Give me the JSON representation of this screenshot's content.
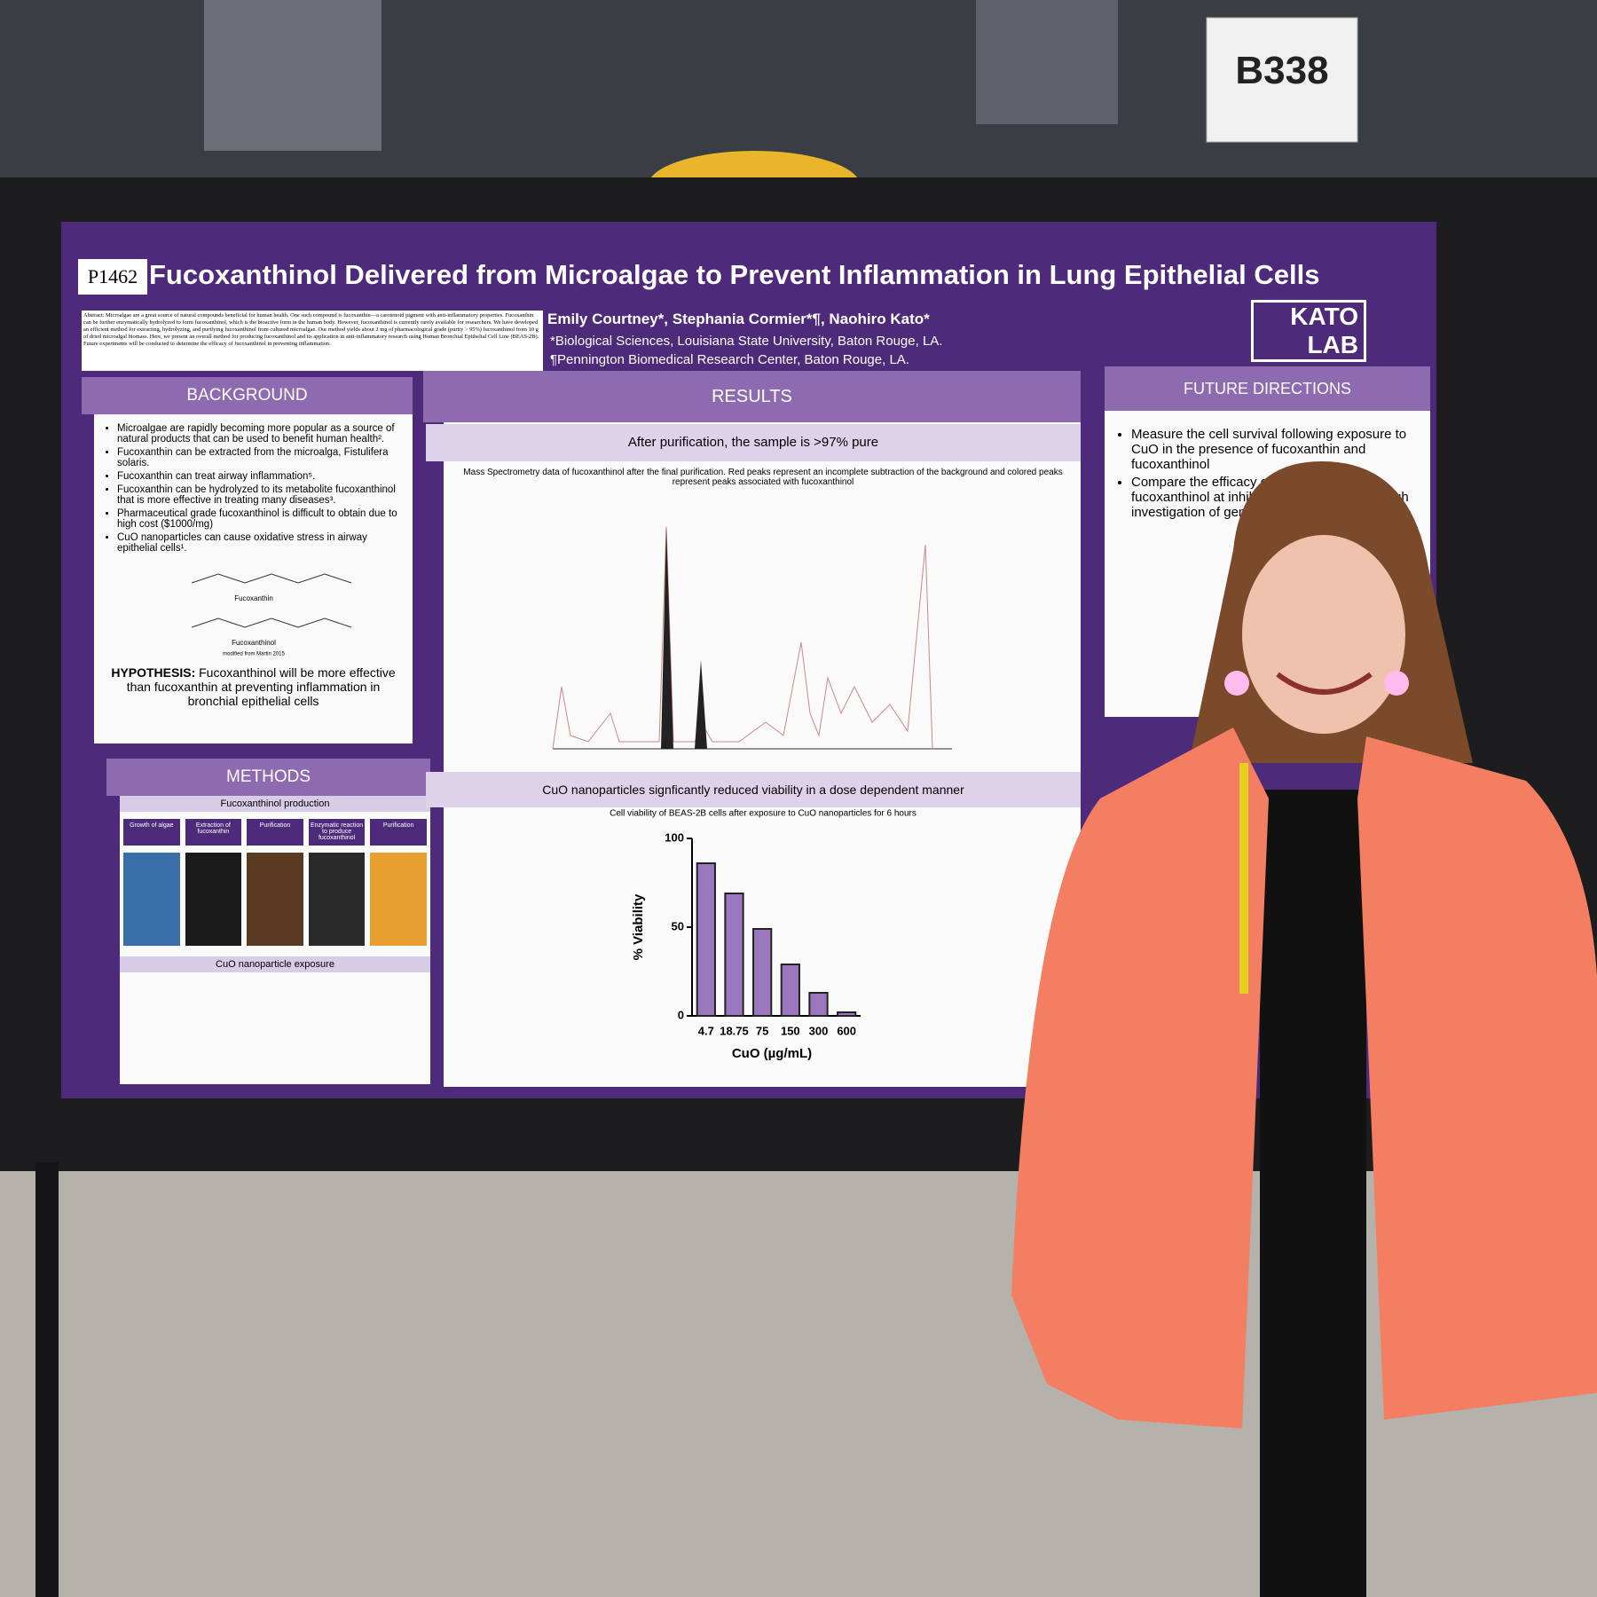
{
  "booth": "B338",
  "poster": {
    "id": "P1462",
    "title": "Fucoxanthinol Delivered from Microalgae to Prevent Inflammation in Lung Epithelial Cells",
    "abstract": "Abstract: Microalgae are a great source of natural compounds beneficial for human health. One such compound is fucoxanthin—a carotenoid pigment with anti-inflammatory properties. Fucoxanthin can be further enzymatically hydrolyzed to form fucoxanthinol, which is the bioactive form in the human body. However, fucoxanthinol is currently rarely available for researchers. We have developed an efficient method for extracting, hydrolyzing, and purifying fucoxanthinol from cultured microalgae. Our method yields about 2 mg of pharmacological grade (purity > 95%) fucoxanthinol from 10 g of dried microalgal biomass. Here, we present an overall method for producing fucoxanthinol and its application in anti-inflammatory research using Human Bronchial Epithelial Cell Line (BEAS-2B). Future experiments will be conducted to determine the efficacy of fucoxanthinol in preventing inflammation.",
    "authors": "Emily Courtney*, Stephania Cormier*¶, Naohiro Kato*",
    "affiliations": [
      "*Biological Sciences, Louisiana State University, Baton Rouge, LA.",
      "¶Pennington Biomedical Research Center, Baton Rouge, LA."
    ],
    "logo": [
      "KATO",
      "LAB"
    ],
    "background": {
      "heading": "BACKGROUND",
      "bullets": [
        "Microalgae are rapidly becoming more popular as a source of natural products that can be used to benefit human health².",
        "Fucoxanthin can be extracted from the microalga, Fistulifera solaris.",
        "Fucoxanthin can treat airway inflammation⁵.",
        "Fucoxanthin can be hydrolyzed to its metabolite fucoxanthinol that is more effective in treating many diseases³.",
        "Pharmaceutical grade fucoxanthinol is difficult to obtain due to high cost ($1000/mg)",
        "CuO nanoparticles can cause oxidative stress in airway epithelial cells¹."
      ],
      "molecules": [
        "Fucoxanthin",
        "Fucoxanthinol"
      ],
      "credit": "modified from Martin 2015",
      "hypothesis_label": "HYPOTHESIS:",
      "hypothesis": "Fucoxanthinol will be more effective than fucoxanthin at preventing inflammation in bronchial epithelial cells"
    },
    "methods": {
      "heading": "METHODS",
      "production_heading": "Fucoxanthinol production",
      "steps": [
        "Growth of algae",
        "Extraction of fucoxanthin",
        "Purification",
        "Enzymatic reaction to produce fucoxanthinol",
        "Purification"
      ],
      "exposure_heading": "CuO nanoparticle exposure"
    },
    "results": {
      "heading": "RESULTS",
      "purity_heading": "After purification, the sample is >97% pure",
      "ms_caption": "Mass Spectrometry data of fucoxanthinol after the final purification. Red peaks represent an incomplete subtraction of the background and colored peaks represent peaks associated with fucoxanthinol",
      "viability_heading": "CuO nanoparticles signficantly reduced viability in a dose dependent manner"
    },
    "future": {
      "heading": "FUTURE DIRECTIONS",
      "bullets": [
        "Measure the cell survival following exposure to CuO in the presence of fucoxanthin and fucoxanthinol",
        "Compare the efficacy of fucoxanthin and fucoxanthinol at inhibiting inflammation through investigation of gene pathways"
      ]
    }
  },
  "chart_data": {
    "type": "bar",
    "title": "Cell viability of BEAS-2B cells after exposure to CuO nanoparticles for 6 hours",
    "categories": [
      "4.7",
      "18.75",
      "75",
      "150",
      "300",
      "600"
    ],
    "values": [
      86,
      69,
      49,
      29,
      13,
      2
    ],
    "color": "#9b78bd",
    "ylim": [
      0,
      100
    ],
    "yticks": [
      0,
      50,
      100
    ],
    "y_label": "% Viability",
    "x_label": "CuO (µg/mL)"
  }
}
